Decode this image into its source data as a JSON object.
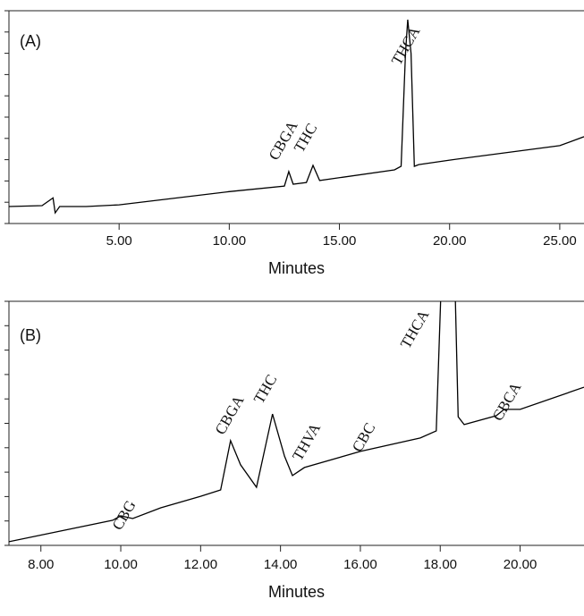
{
  "chart_data": [
    {
      "type": "line",
      "panel_label": "(A)",
      "x_label": "Minutes",
      "color": "#000000",
      "xlim": [
        0,
        26.1
      ],
      "ylim": [
        0,
        100
      ],
      "xticks": [
        {
          "value": 5,
          "label": "5.00"
        },
        {
          "value": 10,
          "label": "10.00"
        },
        {
          "value": 15,
          "label": "15.00"
        },
        {
          "value": 20,
          "label": "20.00"
        },
        {
          "value": 25,
          "label": "25.00"
        }
      ],
      "yticks": [
        0,
        10,
        20,
        30,
        40,
        50,
        60,
        70,
        80,
        90,
        100
      ],
      "x": [
        0,
        1.5,
        2.0,
        2.1,
        2.3,
        3.5,
        5,
        10,
        12.5,
        12.7,
        12.9,
        13.5,
        13.8,
        14.1,
        17.5,
        17.8,
        18.0,
        18.1,
        18.25,
        18.4,
        18.6,
        20,
        25,
        26.1
      ],
      "values": [
        8,
        8.4,
        12,
        5,
        8,
        8,
        8.8,
        15,
        17.6,
        24.4,
        18.5,
        19.3,
        27.3,
        20.2,
        25.2,
        26.9,
        80,
        95.8,
        80,
        26.9,
        27.7,
        29.8,
        36.6,
        40.8
      ],
      "annotations": [
        "CBGA",
        "THC",
        "THCA"
      ]
    },
    {
      "type": "line",
      "panel_label": "(B)",
      "x_label": "Minutes",
      "color": "#000000",
      "xlim": [
        7.2,
        21.6
      ],
      "ylim": [
        0,
        100
      ],
      "xticks": [
        {
          "value": 8,
          "label": "8.00"
        },
        {
          "value": 10,
          "label": "10.00"
        },
        {
          "value": 12,
          "label": "12.00"
        },
        {
          "value": 14,
          "label": "14.00"
        },
        {
          "value": 16,
          "label": "16.00"
        },
        {
          "value": 18,
          "label": "18.00"
        },
        {
          "value": 20,
          "label": "20.00"
        }
      ],
      "yticks": [
        0,
        10,
        20,
        30,
        40,
        50,
        60,
        70,
        80,
        90,
        100
      ],
      "x": [
        7.2,
        9.8,
        10.0,
        10.3,
        11.0,
        12.0,
        12.5,
        12.75,
        13.0,
        13.4,
        13.8,
        14.1,
        14.3,
        14.6,
        16.0,
        17.5,
        17.9,
        18.05,
        18.35,
        18.45,
        18.6,
        19.4,
        19.6,
        20,
        21.6
      ],
      "values": [
        1.5,
        10.3,
        12.1,
        11,
        15.4,
        20.1,
        22.7,
        42.9,
        33,
        23.8,
        53.8,
        36.6,
        28.6,
        31.9,
        38.5,
        44,
        46.9,
        120,
        120,
        52.7,
        49.5,
        53.1,
        55.7,
        55.7,
        64.8
      ],
      "annotations": [
        "CBG",
        "CBGA",
        "THC",
        "THVA",
        "CBC",
        "THCA",
        "CBCA"
      ]
    }
  ]
}
